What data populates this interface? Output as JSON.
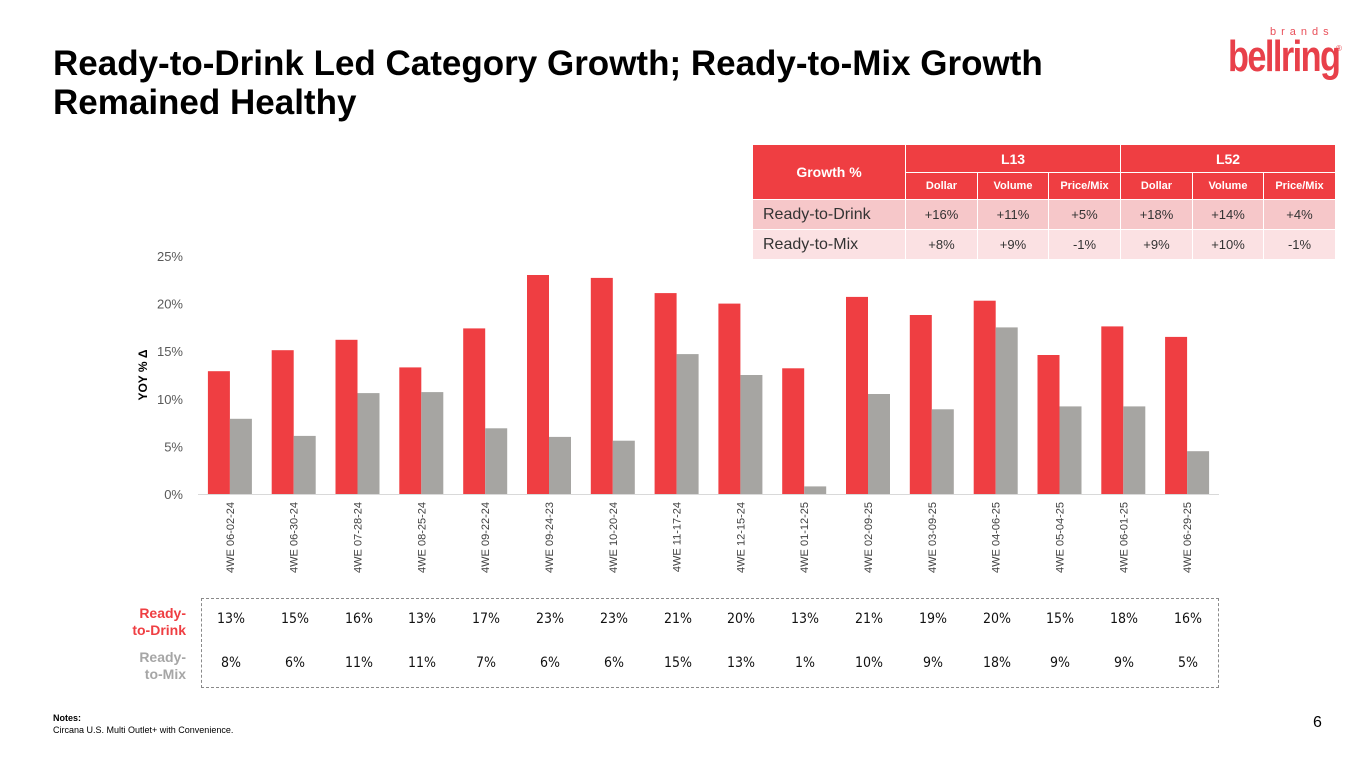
{
  "slide": {
    "title": "Ready-to-Drink Led Category Growth; Ready-to-Mix Growth Remained Healthy",
    "page_number": "6",
    "logo": {
      "brands": "brands",
      "word": "bellring",
      "reg": "®"
    },
    "notes_label": "Notes:",
    "notes_text": "Circana U.S. Multi Outlet+ with Convenience."
  },
  "colors": {
    "rtd": "#ef3e42",
    "rtm": "#a6a5a2",
    "header": "#ef3e42",
    "rtd_row": "#f6c7c9",
    "rtm_row": "#fbe1e3"
  },
  "growth_table": {
    "header": "Growth %",
    "groups": [
      "L13",
      "L52"
    ],
    "subheaders": [
      "Dollar",
      "Volume",
      "Price/Mix",
      "Dollar",
      "Volume",
      "Price/Mix"
    ],
    "rows": [
      {
        "label": "Ready-to-Drink",
        "values": [
          "+16%",
          "+11%",
          "+5%",
          "+18%",
          "+14%",
          "+4%"
        ]
      },
      {
        "label": "Ready-to-Mix",
        "values": [
          "+8%",
          "+9%",
          "-1%",
          "+9%",
          "+10%",
          "-1%"
        ]
      }
    ]
  },
  "chart_data": {
    "type": "bar",
    "title": "",
    "xlabel": "",
    "ylabel": "YOY % Δ",
    "ylim": [
      0,
      25
    ],
    "yticks": [
      "0%",
      "5%",
      "10%",
      "15%",
      "20%",
      "25%"
    ],
    "grid": false,
    "legend": "none",
    "categories": [
      "4WE 06-02-24",
      "4WE 06-30-24",
      "4WE 07-28-24",
      "4WE 08-25-24",
      "4WE 09-22-24",
      "4WE 09-24-23",
      "4WE 10-20-24",
      "4WE 11-17-24",
      "4WE 12-15-24",
      "4WE 01-12-25",
      "4WE 02-09-25",
      "4WE 03-09-25",
      "4WE 04-06-25",
      "4WE 05-04-25",
      "4WE 06-01-25",
      "4WE 06-29-25"
    ],
    "series": [
      {
        "name": "Ready-to-Drink",
        "values": [
          12.9,
          15.1,
          16.2,
          13.3,
          17.4,
          23.0,
          22.7,
          21.1,
          20.0,
          13.2,
          20.7,
          18.8,
          20.3,
          14.6,
          17.6,
          16.5
        ]
      },
      {
        "name": "Ready-to-Mix",
        "values": [
          7.9,
          6.1,
          10.6,
          10.7,
          6.9,
          6.0,
          5.6,
          14.7,
          12.5,
          0.8,
          10.5,
          8.9,
          17.5,
          9.2,
          9.2,
          4.5
        ]
      }
    ]
  },
  "data_table": {
    "rows": [
      {
        "label": "Ready-to-Drink",
        "values": [
          "13%",
          "15%",
          "16%",
          "13%",
          "17%",
          "23%",
          "23%",
          "21%",
          "20%",
          "13%",
          "21%",
          "19%",
          "20%",
          "15%",
          "18%",
          "16%"
        ]
      },
      {
        "label": "Ready-to-Mix",
        "values": [
          "8%",
          "6%",
          "11%",
          "11%",
          "7%",
          "6%",
          "6%",
          "15%",
          "13%",
          "1%",
          "10%",
          "9%",
          "18%",
          "9%",
          "9%",
          "5%"
        ]
      }
    ],
    "label_lines": [
      [
        "Ready-",
        "to-Drink"
      ],
      [
        "Ready-",
        "to-Mix"
      ]
    ]
  }
}
